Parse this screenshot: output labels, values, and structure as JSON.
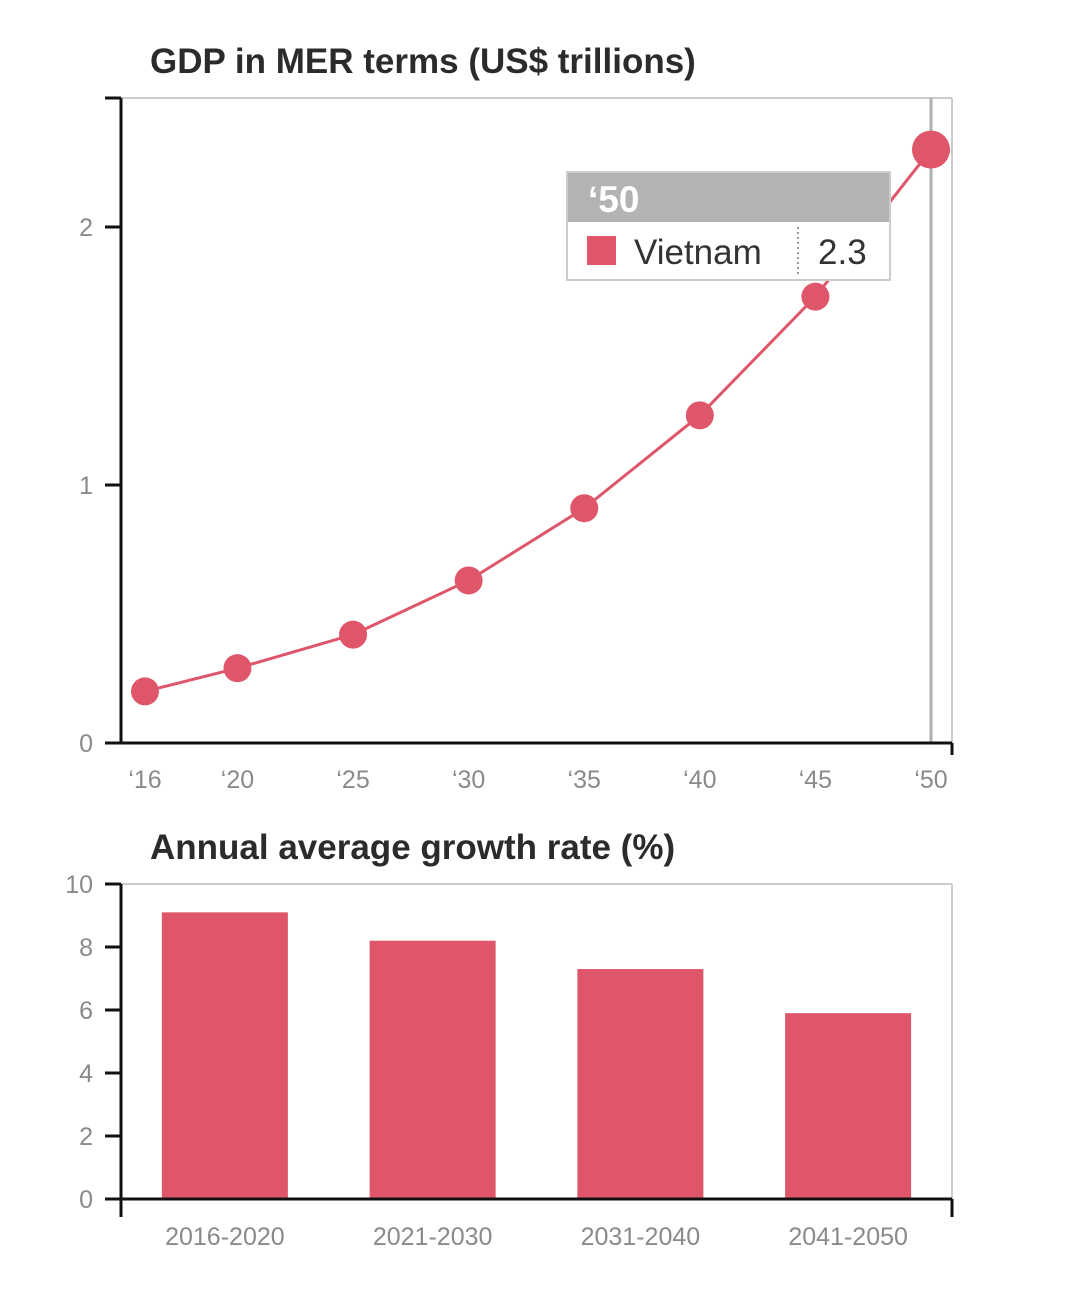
{
  "colors": {
    "series": "#df566b",
    "axis": "#111111",
    "frame": "#cccccc",
    "crosshair": "#b0b0b0",
    "tooltip_header": "#b3b3b3",
    "tick_text": "#8a8a8a"
  },
  "chart_data": [
    {
      "type": "line",
      "title": "GDP in MER terms (US$ trillions)",
      "xlabel": "",
      "ylabel": "",
      "x": [
        "‘16",
        "‘20",
        "‘25",
        "‘30",
        "‘35",
        "‘40",
        "‘45",
        "‘50"
      ],
      "x_years": [
        2016,
        2020,
        2025,
        2030,
        2035,
        2040,
        2045,
        2050
      ],
      "series": [
        {
          "name": "Vietnam",
          "values": [
            0.2,
            0.29,
            0.42,
            0.63,
            0.91,
            1.27,
            1.73,
            2.3
          ]
        }
      ],
      "yticks": [
        0,
        1,
        2
      ],
      "ylim": [
        0,
        2.5
      ],
      "grid": false,
      "tooltip": {
        "header": "‘50",
        "series": "Vietnam",
        "value": "2.3"
      }
    },
    {
      "type": "bar",
      "title": "Annual average growth rate (%)",
      "xlabel": "",
      "ylabel": "",
      "categories": [
        "2016-2020",
        "2021-2030",
        "2031-2040",
        "2041-2050"
      ],
      "values": [
        9.1,
        8.2,
        7.3,
        5.9
      ],
      "yticks": [
        0,
        2,
        4,
        6,
        8,
        10
      ],
      "ylim": [
        0,
        10
      ],
      "grid": false
    }
  ]
}
